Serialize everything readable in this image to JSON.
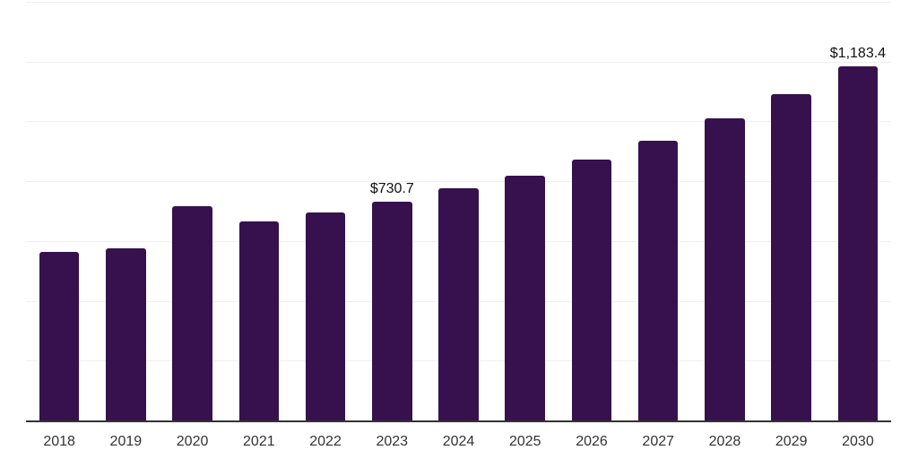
{
  "chart_data": {
    "type": "bar",
    "title": "",
    "xlabel": "",
    "ylabel": "",
    "categories": [
      "2018",
      "2019",
      "2020",
      "2021",
      "2022",
      "2023",
      "2024",
      "2025",
      "2026",
      "2027",
      "2028",
      "2029",
      "2030"
    ],
    "values": [
      564,
      577,
      718,
      665,
      697,
      730.7,
      777,
      818,
      873,
      936,
      1010,
      1090,
      1183.4
    ],
    "data_labels": [
      "",
      "",
      "",
      "",
      "",
      "$730.7",
      "",
      "",
      "",
      "",
      "",
      "",
      "$1,183.4"
    ],
    "ylim": [
      0,
      1400
    ],
    "ytick_step": 200,
    "grid": "horizontal",
    "legend": "none",
    "colors": {
      "bar": "#36114D",
      "gridline": "#efefef",
      "axis_line": "#333333",
      "tick_label": "#333333",
      "data_label": "#111111",
      "background": "#ffffff"
    }
  }
}
